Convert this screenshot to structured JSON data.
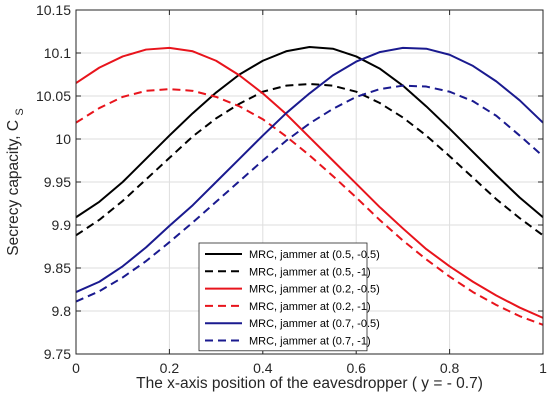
{
  "chart_data": {
    "type": "line",
    "xlabel": "The x-axis position of the eavesdropper ( y = - 0.7)",
    "ylabel": "Secrecy capacity, C",
    "ylabel_subscript": "S",
    "xlim": [
      0,
      1
    ],
    "ylim": [
      9.75,
      10.15
    ],
    "xticks": [
      0,
      0.2,
      0.4,
      0.6,
      0.8,
      1
    ],
    "xtick_labels": [
      "0",
      "0.2",
      "0.4",
      "0.6",
      "0.8",
      "1"
    ],
    "yticks": [
      9.75,
      9.8,
      9.85,
      9.9,
      9.95,
      10,
      10.05,
      10.1,
      10.15
    ],
    "ytick_labels": [
      "9.75",
      "9.8",
      "9.85",
      "9.9",
      "9.95",
      "10",
      "10.05",
      "10.1",
      "10.15"
    ],
    "grid": true,
    "legend_position": "lower-center",
    "x": [
      0,
      0.05,
      0.1,
      0.15,
      0.2,
      0.25,
      0.3,
      0.35,
      0.4,
      0.45,
      0.5,
      0.55,
      0.6,
      0.65,
      0.7,
      0.75,
      0.8,
      0.85,
      0.9,
      0.95,
      1
    ],
    "series": [
      {
        "name": "MRC, jammer at (0.5, -0.5)",
        "color": "#000000",
        "dash": "solid",
        "values": [
          9.909,
          9.927,
          9.95,
          9.977,
          10.004,
          10.03,
          10.054,
          10.075,
          10.091,
          10.102,
          10.107,
          10.105,
          10.096,
          10.082,
          10.062,
          10.038,
          10.012,
          9.985,
          9.958,
          9.932,
          9.909
        ]
      },
      {
        "name": "MRC, jammer at (0.5, -1)",
        "color": "#000000",
        "dash": "dashed",
        "values": [
          9.888,
          9.906,
          9.928,
          9.953,
          9.978,
          10.003,
          10.024,
          10.041,
          10.055,
          10.062,
          10.064,
          10.062,
          10.055,
          10.042,
          10.025,
          10.004,
          9.98,
          9.955,
          9.93,
          9.908,
          9.888
        ]
      },
      {
        "name": "MRC, jammer at (0.2, -0.5)",
        "color": "#e8141c",
        "dash": "solid",
        "values": [
          10.065,
          10.083,
          10.096,
          10.104,
          10.106,
          10.102,
          10.091,
          10.074,
          10.053,
          10.029,
          10.002,
          9.975,
          9.948,
          9.921,
          9.896,
          9.872,
          9.852,
          9.834,
          9.818,
          9.804,
          9.792
        ]
      },
      {
        "name": "MRC, jammer at (0.2, -1)",
        "color": "#e8141c",
        "dash": "dashed",
        "values": [
          10.019,
          10.036,
          10.049,
          10.056,
          10.058,
          10.056,
          10.049,
          10.038,
          10.023,
          10.003,
          9.981,
          9.957,
          9.932,
          9.906,
          9.882,
          9.86,
          9.84,
          9.822,
          9.807,
          9.794,
          9.784
        ]
      },
      {
        "name": "MRC, jammer at (0.7, -0.5)",
        "color": "#1a1a8f",
        "dash": "solid",
        "values": [
          9.822,
          9.834,
          9.852,
          9.874,
          9.899,
          9.923,
          9.95,
          9.977,
          10.004,
          10.03,
          10.053,
          10.074,
          10.09,
          10.101,
          10.106,
          10.105,
          10.098,
          10.085,
          10.067,
          10.045,
          10.019
        ]
      },
      {
        "name": "MRC, jammer at (0.7, -1)",
        "color": "#1a1a8f",
        "dash": "dashed",
        "values": [
          9.811,
          9.823,
          9.839,
          9.858,
          9.88,
          9.903,
          9.927,
          9.951,
          9.975,
          9.998,
          10.018,
          10.035,
          10.049,
          10.058,
          10.062,
          10.061,
          10.055,
          10.044,
          10.027,
          10.004,
          9.98
        ]
      }
    ]
  }
}
